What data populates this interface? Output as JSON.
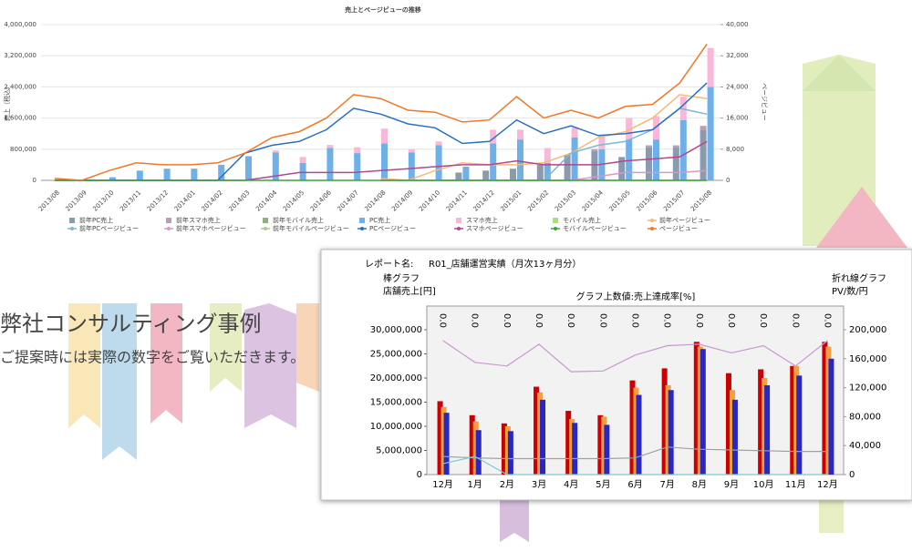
{
  "headline": "弊社コンサルティング事例",
  "subtext": "ご提案時には実際の数字をご覧いただきます。",
  "chart_data": [
    {
      "type": "bar",
      "title": "売上とページビューの推移",
      "ylabel": "売上（税込）",
      "y2label": "ページビュー",
      "categories": [
        "2013/08",
        "2013/09",
        "2013/10",
        "2013/11",
        "2013/12",
        "2014/01",
        "2014/02",
        "2014/03",
        "2014/04",
        "2014/05",
        "2014/06",
        "2014/07",
        "2014/08",
        "2014/09",
        "2014/10",
        "2014/11",
        "2014/12",
        "2015/01",
        "2015/02",
        "2015/03",
        "2015/04",
        "2015/05",
        "2015/06",
        "2015/07",
        "2015/08"
      ],
      "ylim": [
        0,
        4000000
      ],
      "yticks": [
        0,
        {
          "value": 800000,
          "label": "800,000"
        },
        {
          "value": 1600000,
          "label": "1,600,000"
        },
        {
          "value": 2400000,
          "label": "2,400,000"
        },
        {
          "value": 3200000,
          "label": "3,200,000"
        },
        {
          "value": 4000000,
          "label": "4,000,000"
        }
      ],
      "y2lim": [
        0,
        40000
      ],
      "y2ticks": [
        0,
        {
          "value": 8000,
          "label": "8,000"
        },
        {
          "value": 16000,
          "label": "16,000"
        },
        {
          "value": 24000,
          "label": "24,000"
        },
        {
          "value": 32000,
          "label": "32,000"
        },
        {
          "value": 40000,
          "label": "40,000"
        }
      ],
      "grid": true,
      "series": [
        {
          "name": "前年PC売上",
          "type": "bar",
          "color": "#8a9bb0",
          "values": [
            0,
            0,
            0,
            0,
            0,
            0,
            0,
            0,
            0,
            0,
            0,
            0,
            0,
            0,
            0,
            200000,
            250000,
            300000,
            400000,
            650000,
            750000,
            600000,
            850000,
            850000,
            1300000
          ]
        },
        {
          "name": "前年スマホ売上",
          "type": "bar",
          "color": "#b8a0b0",
          "values": [
            0,
            0,
            0,
            0,
            0,
            0,
            0,
            0,
            0,
            0,
            0,
            0,
            0,
            0,
            0,
            0,
            0,
            0,
            0,
            0,
            50000,
            0,
            50000,
            50000,
            100000
          ]
        },
        {
          "name": "前年モバイル売上",
          "type": "bar",
          "color": "#90b080",
          "values": [
            0,
            0,
            0,
            0,
            0,
            0,
            0,
            0,
            0,
            0,
            0,
            0,
            0,
            0,
            0,
            0,
            0,
            0,
            0,
            0,
            0,
            0,
            0,
            0,
            0
          ]
        },
        {
          "name": "PC売上",
          "type": "bar",
          "color": "#6fb0e8",
          "values": [
            0,
            0,
            80000,
            250000,
            300000,
            300000,
            400000,
            620000,
            720000,
            450000,
            830000,
            700000,
            950000,
            720000,
            900000,
            350000,
            950000,
            1050000,
            450000,
            1100000,
            800000,
            1050000,
            1050000,
            1550000,
            2400000
          ]
        },
        {
          "name": "スマホ売上",
          "type": "bar",
          "color": "#f9b8d8",
          "values": [
            0,
            0,
            0,
            0,
            0,
            0,
            0,
            0,
            50000,
            150000,
            80000,
            150000,
            380000,
            80000,
            100000,
            0,
            350000,
            250000,
            380000,
            250000,
            350000,
            550000,
            600000,
            600000,
            1000000
          ]
        },
        {
          "name": "モバイル売上",
          "type": "bar",
          "color": "#a8e080",
          "values": [
            0,
            0,
            0,
            0,
            0,
            0,
            0,
            0,
            0,
            0,
            0,
            0,
            0,
            0,
            0,
            0,
            0,
            0,
            0,
            0,
            0,
            0,
            0,
            0,
            0
          ]
        },
        {
          "name": "前年ページビュー",
          "type": "line",
          "axis": "y2",
          "color": "#f8b878",
          "values": [
            null,
            null,
            null,
            null,
            null,
            null,
            null,
            null,
            null,
            null,
            null,
            null,
            500,
            0,
            2500,
            4500,
            4000,
            4000,
            4500,
            7000,
            11000,
            12500,
            16000,
            22000,
            21000
          ]
        },
        {
          "name": "前年PCページビュー",
          "type": "line",
          "axis": "y2",
          "color": "#7ab8d8",
          "values": [
            null,
            null,
            null,
            null,
            null,
            null,
            null,
            null,
            null,
            null,
            null,
            null,
            0,
            0,
            0,
            0,
            0,
            0,
            0,
            7000,
            9000,
            10000,
            13000,
            18500,
            17000
          ]
        },
        {
          "name": "前年スマホページビュー",
          "type": "line",
          "axis": "y2",
          "color": "#d898c8",
          "values": [
            null,
            null,
            null,
            null,
            null,
            null,
            null,
            null,
            null,
            null,
            null,
            null,
            0,
            0,
            0,
            0,
            0,
            0,
            0,
            0,
            1000,
            2000,
            2000,
            2000,
            2500
          ]
        },
        {
          "name": "前年モバイルページビュー",
          "type": "line",
          "axis": "y2",
          "color": "#a8c898",
          "values": [
            null,
            null,
            null,
            null,
            null,
            null,
            null,
            null,
            null,
            null,
            null,
            null,
            0,
            0,
            0,
            0,
            0,
            0,
            0,
            0,
            0,
            0,
            0,
            0,
            0
          ]
        },
        {
          "name": "PCページビュー",
          "type": "line",
          "axis": "y2",
          "color": "#2a70c0",
          "values": [
            0,
            0,
            0,
            0,
            0,
            0,
            0,
            7000,
            9000,
            10000,
            13000,
            18500,
            17000,
            14500,
            13500,
            9500,
            10000,
            15500,
            12000,
            14000,
            11500,
            12000,
            13000,
            18500,
            25000
          ]
        },
        {
          "name": "スマホページビュー",
          "type": "line",
          "axis": "y2",
          "color": "#b04890",
          "values": [
            0,
            0,
            0,
            0,
            0,
            0,
            0,
            0,
            1000,
            2000,
            2000,
            2000,
            2500,
            3000,
            3500,
            4000,
            4000,
            5000,
            4000,
            4000,
            4000,
            5000,
            5500,
            6000,
            10000
          ]
        },
        {
          "name": "モバイルページビュー",
          "type": "line",
          "axis": "y2",
          "color": "#40a040",
          "values": [
            0,
            0,
            0,
            0,
            0,
            0,
            0,
            0,
            0,
            0,
            0,
            0,
            0,
            0,
            0,
            0,
            0,
            0,
            0,
            0,
            0,
            0,
            0,
            0,
            0
          ]
        },
        {
          "name": "ページビュー",
          "type": "line",
          "axis": "y2",
          "color": "#f07828",
          "values": [
            500,
            0,
            2500,
            4500,
            4000,
            4000,
            4500,
            7000,
            11000,
            12500,
            16000,
            22000,
            21000,
            18000,
            17500,
            15000,
            15500,
            21500,
            16000,
            18000,
            16000,
            19000,
            19500,
            25000,
            35000
          ]
        }
      ]
    },
    {
      "type": "bar",
      "report_label": "レポート名:",
      "report_name": "R01_店舗運営実績（月次13ヶ月分）",
      "ylabel": [
        "棒グラフ",
        "店舗売上[円]"
      ],
      "y2label": [
        "折れ線グラフ",
        "PV/数/円"
      ],
      "subtitle": "グラフ上数値:売上達成率[%]",
      "categories": [
        "12月",
        "1月",
        "2月",
        "3月",
        "4月",
        "5月",
        "6月",
        "7月",
        "8月",
        "9月",
        "10月",
        "11月",
        "12月"
      ],
      "ylim": [
        0,
        30000000
      ],
      "yticks": [
        0,
        {
          "value": 5000000,
          "label": "5,000,000"
        },
        {
          "value": 10000000,
          "label": "10,000,000"
        },
        {
          "value": 15000000,
          "label": "15,000,000"
        },
        {
          "value": 20000000,
          "label": "20,000,000"
        },
        {
          "value": 25000000,
          "label": "25,000,000"
        },
        {
          "value": 30000000,
          "label": "30,000,000"
        }
      ],
      "y2lim": [
        0,
        200000
      ],
      "y2ticks": [
        0,
        {
          "value": 40000,
          "label": "40,000"
        },
        {
          "value": 80000,
          "label": "80,000"
        },
        {
          "value": 120000,
          "label": "120,000"
        },
        {
          "value": 160000,
          "label": "160,000"
        },
        {
          "value": 200000,
          "label": "200,000"
        }
      ],
      "series": [
        {
          "type": "bar",
          "color": "#cc0000",
          "values": [
            15200000,
            12300000,
            10600000,
            18200000,
            13200000,
            12300000,
            19500000,
            22000000,
            27500000,
            21000000,
            21800000,
            22500000,
            27500000
          ]
        },
        {
          "type": "bar",
          "color": "#f0a040",
          "values": [
            14000000,
            11000000,
            10000000,
            17000000,
            11500000,
            12000000,
            18000000,
            18500000,
            26500000,
            17500000,
            20000000,
            22500000,
            26500000
          ]
        },
        {
          "type": "bar",
          "color": "#2828c0",
          "values": [
            12800000,
            9200000,
            9000000,
            15500000,
            10700000,
            10300000,
            16500000,
            17500000,
            26000000,
            15500000,
            18500000,
            20500000,
            24000000
          ]
        },
        {
          "type": "line",
          "axis": "y2",
          "color": "#c898d0",
          "values": [
            185000,
            155000,
            150000,
            180000,
            142000,
            143000,
            165000,
            178000,
            180000,
            168000,
            178000,
            150000,
            185000
          ]
        },
        {
          "type": "line",
          "axis": "y2",
          "color": "#a0a0a0",
          "values": [
            25000,
            23000,
            22000,
            22000,
            22000,
            22000,
            23000,
            38000,
            35000,
            34000,
            33000,
            32000,
            32000
          ]
        },
        {
          "type": "line",
          "axis": "y2",
          "color": "#80c8d8",
          "values": [
            15000,
            25000,
            0,
            0,
            0,
            0,
            0,
            0,
            0,
            0,
            0,
            0,
            0
          ]
        },
        {
          "type": "label",
          "values": [
            0,
            0,
            0,
            0,
            0,
            0,
            0,
            0,
            0,
            0,
            0,
            0,
            0
          ],
          "value_labels": [
            "0.0",
            "0.0",
            "0.0",
            "0.0",
            "0.0",
            "0.0",
            "0.0",
            "0.0",
            "0.0",
            "0.0",
            "0.0",
            "0.0",
            "0.0"
          ]
        }
      ]
    }
  ]
}
